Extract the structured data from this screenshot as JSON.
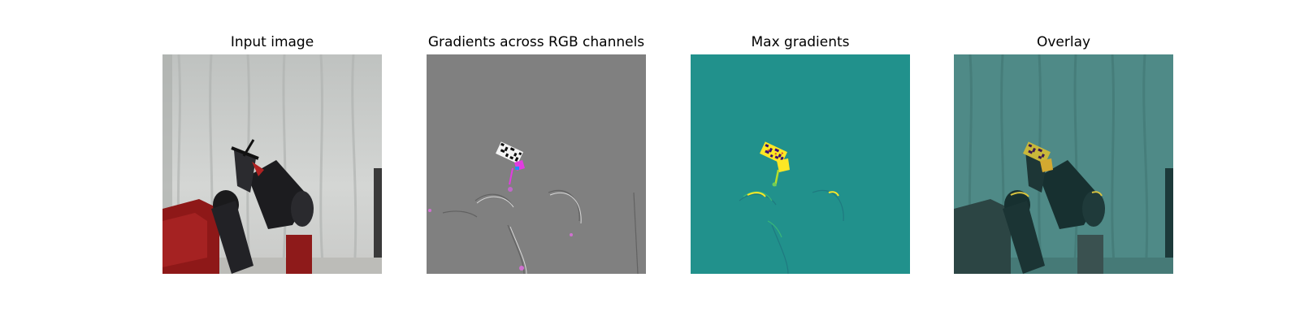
{
  "panels": [
    {
      "title": "Input image",
      "image": "robot-gripper-photo"
    },
    {
      "title": "Gradients across RGB channels",
      "image": "rgb-gradient-map"
    },
    {
      "title": "Max gradients",
      "image": "max-gradient-heatmap"
    },
    {
      "title": "Overlay",
      "image": "gradient-overlay-on-photo"
    }
  ],
  "colors": {
    "curtain": "#c8cac8",
    "robot_red": "#9a1c1c",
    "robot_black": "#1a1a1c",
    "gradient_gray": "#7f7f7f",
    "heatmap_teal": "#21918c",
    "heatmap_yellow": "#fde725",
    "overlay_teal": "#4f8a87"
  }
}
